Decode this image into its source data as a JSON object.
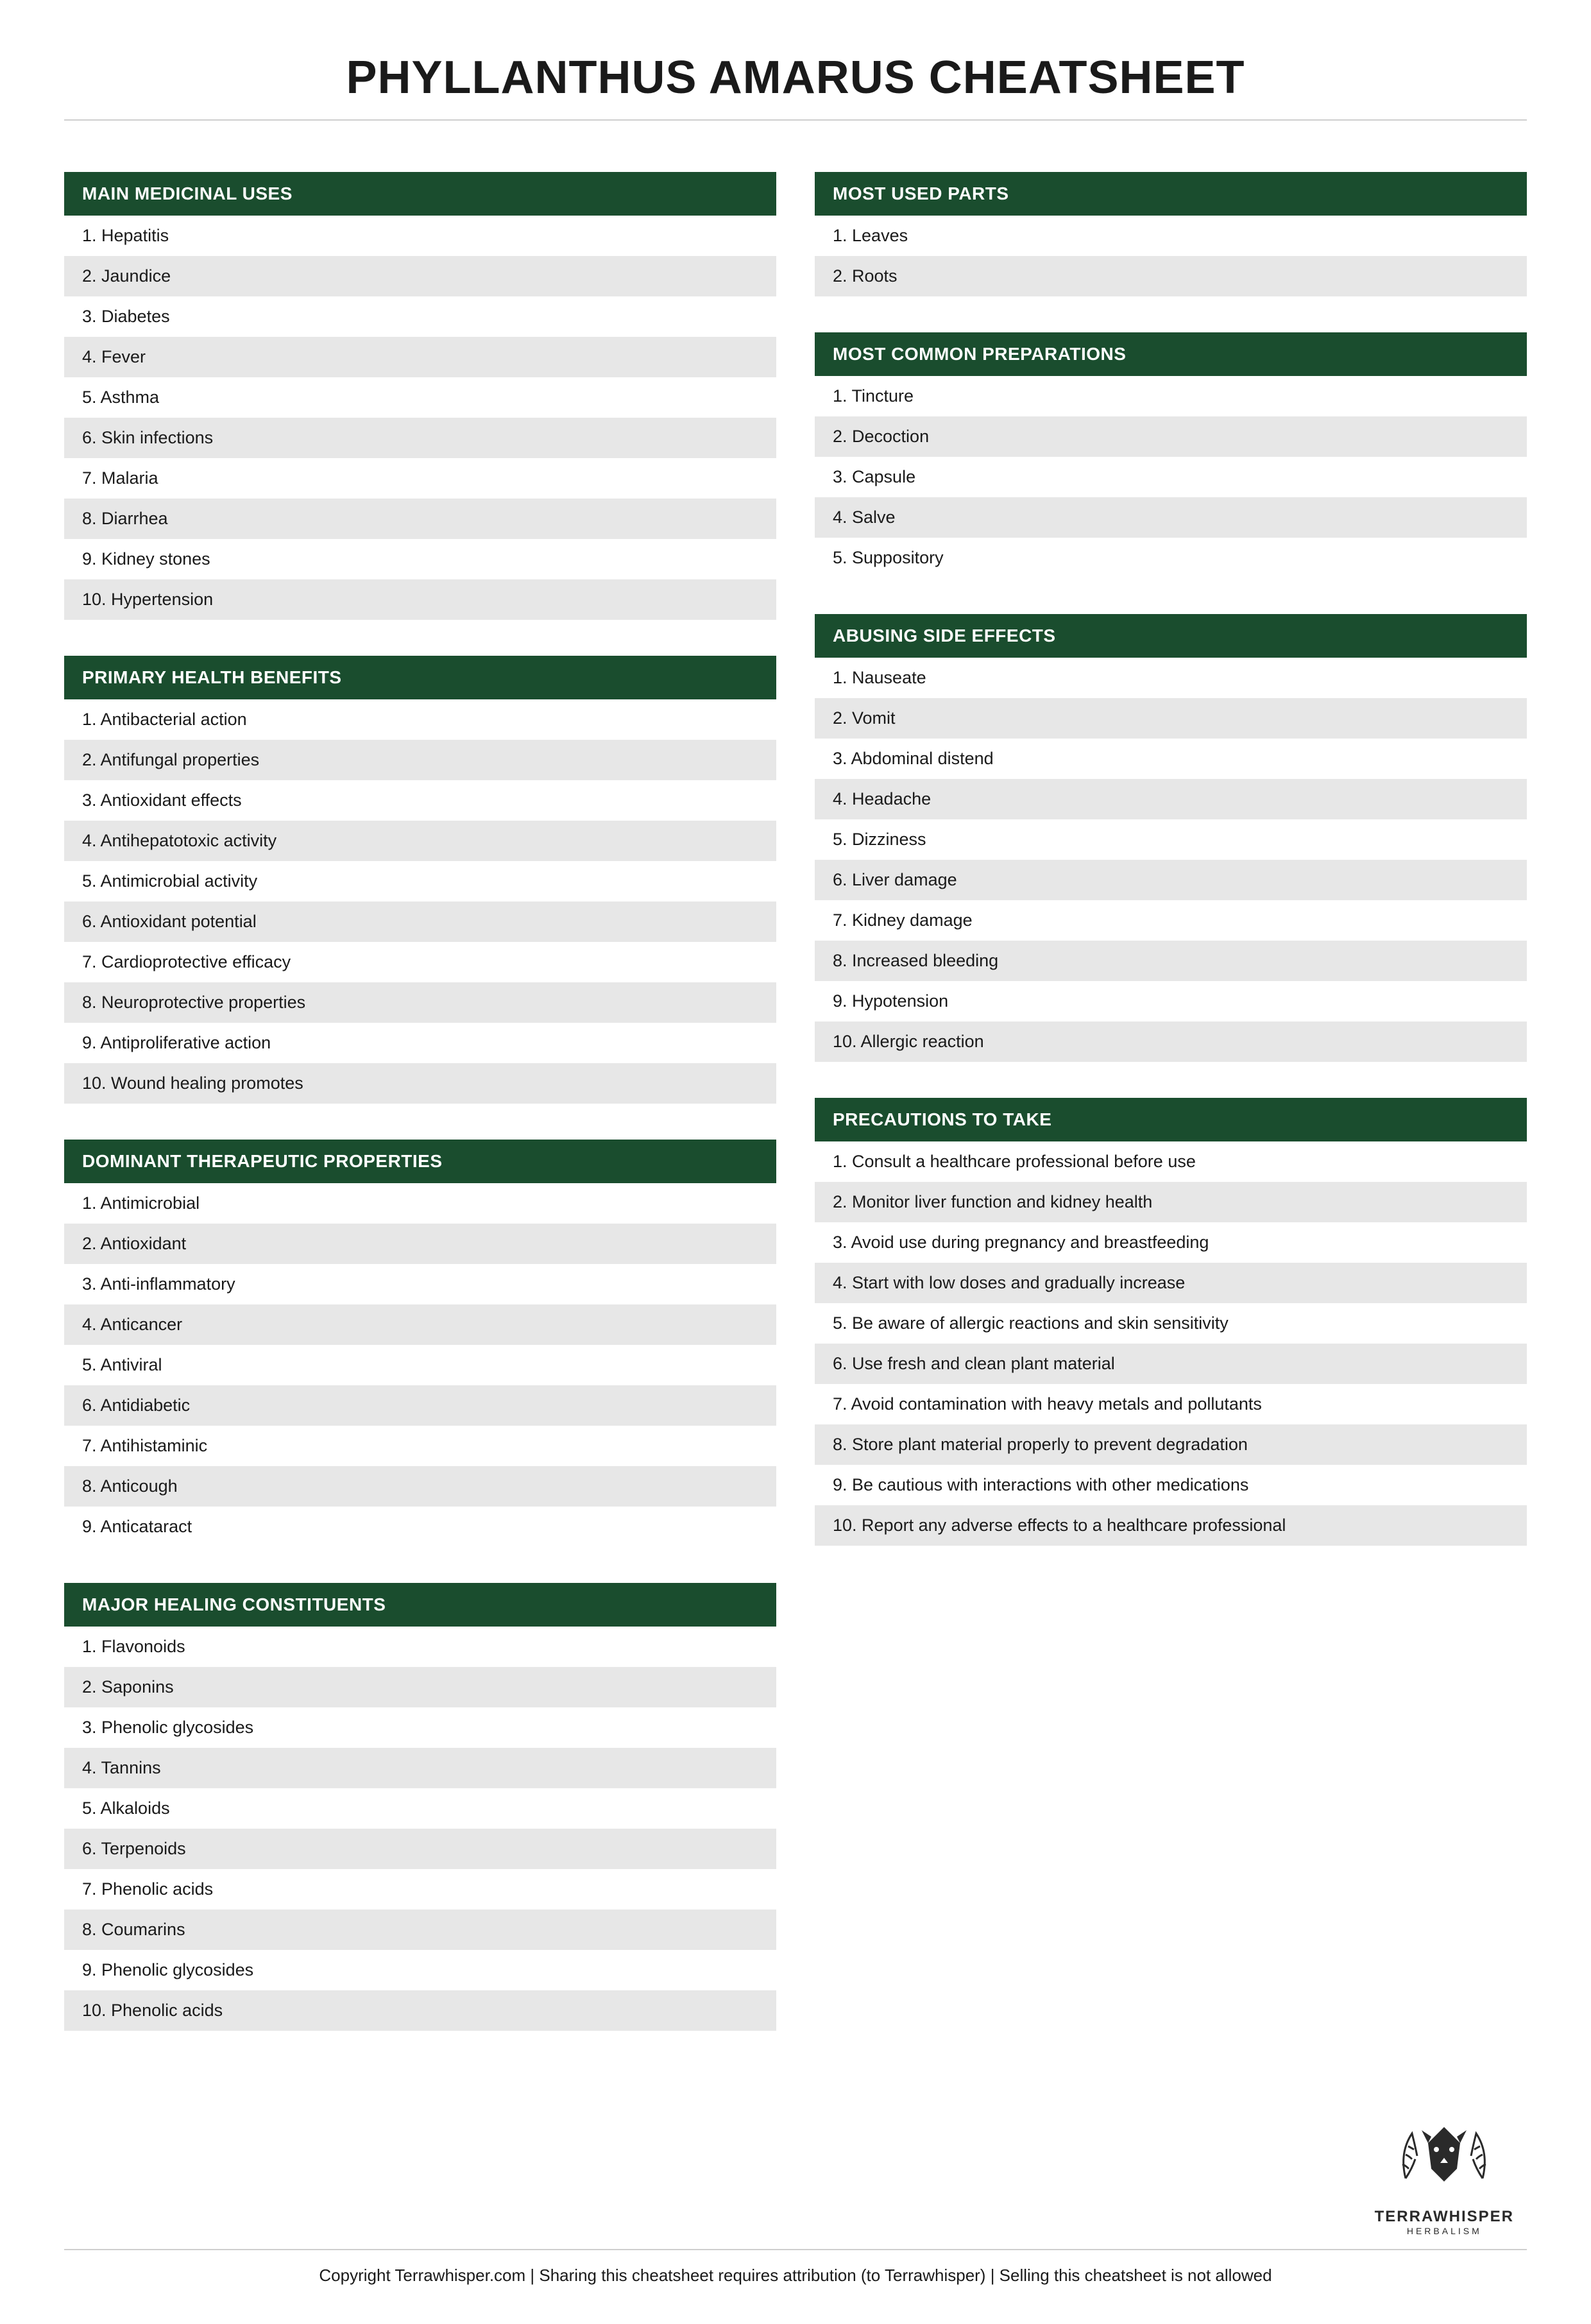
{
  "title": "PHYLLANTHUS AMARUS CHEATSHEET",
  "colors": {
    "header_bg": "#1a4d2e",
    "header_text": "#ffffff",
    "row_odd_bg": "#ffffff",
    "row_even_bg": "#e7e7e7",
    "text": "#1a1a1a",
    "divider": "#cfcfcf"
  },
  "typography": {
    "title_fontsize": 72,
    "title_weight": 900,
    "header_fontsize": 28,
    "item_fontsize": 27,
    "footer_fontsize": 26
  },
  "left": {
    "uses": {
      "title": "MAIN MEDICINAL USES",
      "items": [
        "1. Hepatitis",
        "2. Jaundice",
        "3. Diabetes",
        "4. Fever",
        "5. Asthma",
        "6. Skin infections",
        "7. Malaria",
        "8. Diarrhea",
        "9. Kidney stones",
        "10. Hypertension"
      ]
    },
    "benefits": {
      "title": "PRIMARY HEALTH BENEFITS",
      "items": [
        "1. Antibacterial action",
        "2. Antifungal properties",
        "3. Antioxidant effects",
        "4. Antihepatotoxic activity",
        "5. Antimicrobial activity",
        "6. Antioxidant potential",
        "7. Cardioprotective efficacy",
        "8. Neuroprotective properties",
        "9. Antiproliferative action",
        "10. Wound healing promotes"
      ]
    },
    "therapeutic": {
      "title": "DOMINANT THERAPEUTIC PROPERTIES",
      "items": [
        "1. Antimicrobial",
        "2. Antioxidant",
        "3. Anti-inflammatory",
        "4. Anticancer",
        "5. Antiviral",
        "6. Antidiabetic",
        "7. Antihistaminic",
        "8. Anticough",
        "9. Anticataract"
      ]
    },
    "constituents": {
      "title": "MAJOR HEALING CONSTITUENTS",
      "items": [
        "1. Flavonoids",
        "2. Saponins",
        "3. Phenolic glycosides",
        "4. Tannins",
        "5. Alkaloids",
        "6. Terpenoids",
        "7. Phenolic acids",
        "8. Coumarins",
        "9. Phenolic glycosides",
        "10. Phenolic acids"
      ]
    }
  },
  "right": {
    "parts": {
      "title": "MOST USED PARTS",
      "items": [
        "1. Leaves",
        "2. Roots"
      ]
    },
    "preparations": {
      "title": "MOST COMMON PREPARATIONS",
      "items": [
        "1. Tincture",
        "2. Decoction",
        "3. Capsule",
        "4. Salve",
        "5. Suppository"
      ]
    },
    "sideeffects": {
      "title": "ABUSING SIDE EFFECTS",
      "items": [
        "1. Nauseate",
        "2. Vomit",
        "3. Abdominal distend",
        "4. Headache",
        "5. Dizziness",
        "6. Liver damage",
        "7. Kidney damage",
        "8. Increased bleeding",
        "9. Hypotension",
        "10. Allergic reaction"
      ]
    },
    "precautions": {
      "title": "PRECAUTIONS TO TAKE",
      "items": [
        "1. Consult a healthcare professional before use",
        "2. Monitor liver function and kidney health",
        "3. Avoid use during pregnancy and breastfeeding",
        "4. Start with low doses and gradually increase",
        "5. Be aware of allergic reactions and skin sensitivity",
        "6. Use fresh and clean plant material",
        "7. Avoid contamination with heavy metals and pollutants",
        "8. Store plant material properly to prevent degradation",
        "9. Be cautious with interactions with other medications",
        "10. Report any adverse effects to a healthcare professional"
      ]
    }
  },
  "logo": {
    "name": "TERRAWHISPER",
    "sub": "HERBALISM"
  },
  "copyright": "Copyright Terrawhisper.com | Sharing this cheatsheet requires attribution (to Terrawhisper) | Selling this cheatsheet is not allowed"
}
